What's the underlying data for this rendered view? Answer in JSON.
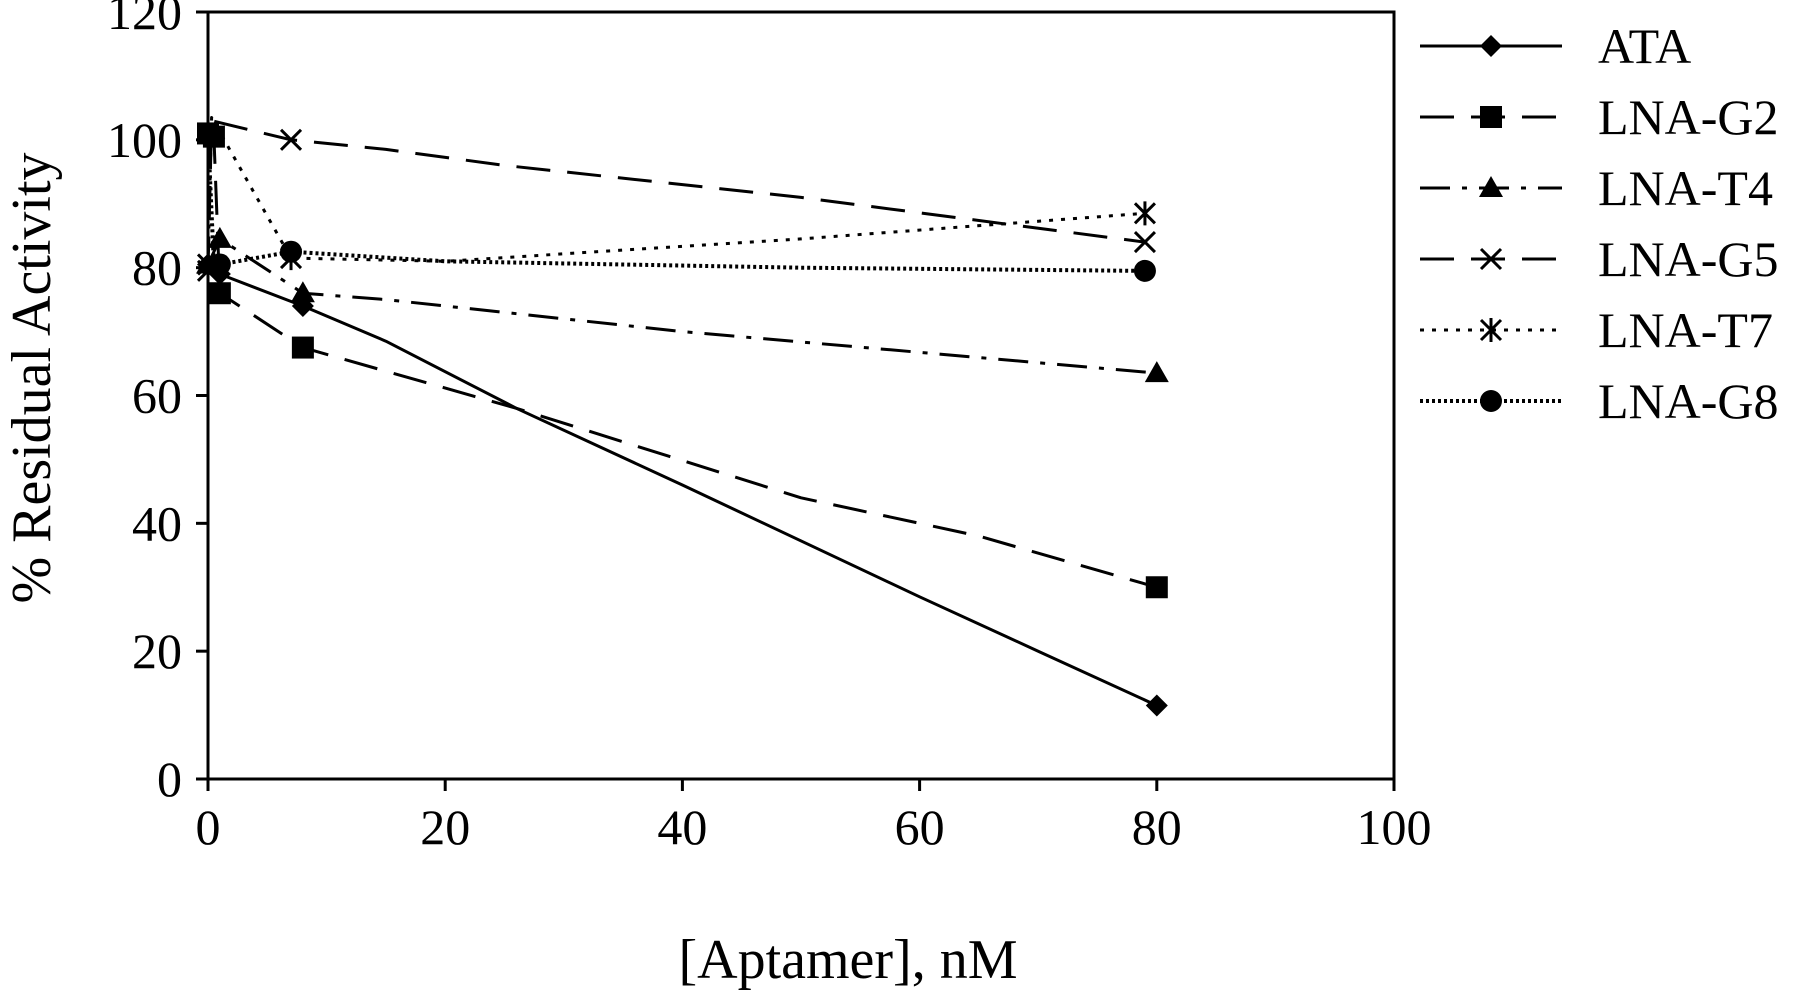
{
  "chart_data": {
    "type": "line",
    "title": "",
    "xlabel": "[Aptamer], nM",
    "ylabel": "% Residual Activity",
    "xlim": [
      0,
      100
    ],
    "ylim": [
      0,
      120
    ],
    "xticks": [
      0,
      20,
      40,
      60,
      80,
      100
    ],
    "yticks": [
      0,
      20,
      40,
      60,
      80,
      100,
      120
    ],
    "grid": false,
    "legend_position": "right",
    "series": [
      {
        "name": " ATA",
        "line": "solid",
        "marker": "diamond",
        "x": [
          0,
          1,
          8,
          15,
          26,
          40,
          60,
          70,
          80
        ],
        "y": [
          80.5,
          79,
          74,
          68.5,
          58,
          46,
          28.5,
          20,
          11.5
        ]
      },
      {
        "name": "LNA-G2",
        "line": "dash",
        "marker": "square",
        "x": [
          0,
          0.5,
          1,
          8,
          26,
          50,
          65,
          80
        ],
        "y": [
          101,
          100.5,
          76,
          67.5,
          58,
          44,
          38,
          30
        ]
      },
      {
        "name": "LNA-T4",
        "line": "dashdot",
        "marker": "triangle",
        "x": [
          0,
          1,
          8,
          15,
          20,
          40,
          80
        ],
        "y": [
          80.5,
          84.5,
          76,
          75,
          74,
          70,
          63.5
        ]
      },
      {
        "name": "LNA-G5",
        "line": "dash",
        "marker": "x",
        "x": [
          0,
          0.3,
          7,
          15,
          25,
          50,
          79
        ],
        "y": [
          79.5,
          103,
          100,
          98.5,
          96,
          91,
          84
        ]
      },
      {
        "name": "LNA-T7",
        "line": "dot",
        "marker": "asterisk",
        "x": [
          0,
          0.3,
          7,
          20,
          50,
          79
        ],
        "y": [
          80.5,
          103.5,
          81.5,
          81,
          84.5,
          88.5
        ]
      },
      {
        "name": "LNA-G8",
        "line": "densedot",
        "marker": "circle",
        "x": [
          0,
          0.5,
          1,
          7,
          20,
          50,
          79
        ],
        "y": [
          101,
          80.5,
          80.5,
          82.5,
          81,
          80,
          79.5
        ]
      }
    ]
  }
}
